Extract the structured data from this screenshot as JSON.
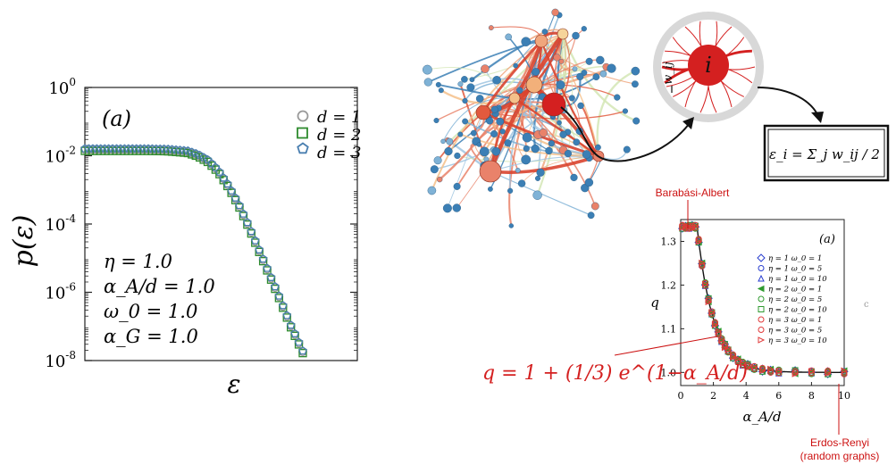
{
  "left_panel": {
    "panel_label": "(a)",
    "ylabel": "p(ε)",
    "xlabel": "ε",
    "yticks": [
      "10^0",
      "10^-2",
      "10^-4",
      "10^-6",
      "10^-8"
    ],
    "params": [
      "η = 1.0",
      "α_A/d = 1.0",
      "ω_0 = 1.0",
      "α_G = 1.0"
    ]
  },
  "strength_formula": "ε_i = Σ_j w_ij / 2",
  "node_label": "i",
  "edge_label": "w_ij",
  "right_panel": {
    "panel_label": "(a)",
    "ylabel": "q",
    "xlabel": "α_A/d",
    "ba_label": "Barabási-Albert",
    "er_label": "Erdos-Renyi",
    "er_sublabel": "(random graphs)",
    "formula": "q = 1 + (1/3) e^(1−α_A/d)",
    "stray_char": "c"
  },
  "chart_data": [
    {
      "type": "scatter",
      "panel": "left",
      "title": "",
      "xlabel": "ε",
      "ylabel": "p(ε)",
      "yscale": "log",
      "ylim": [
        1e-08,
        1
      ],
      "x_ticks_shown": false,
      "legend_position": "top-right",
      "series": [
        {
          "name": "d = 1",
          "marker": "circle",
          "color": "#999999"
        },
        {
          "name": "d = 2",
          "marker": "square",
          "color": "#2e8b2e"
        },
        {
          "name": "d = 3",
          "marker": "pentagon",
          "color": "#4a7fb0"
        }
      ],
      "curve": {
        "plateau_value": 0.015,
        "points_log10": [
          [
            0.0,
            -1.82
          ],
          [
            0.1,
            -1.82
          ],
          [
            0.2,
            -1.82
          ],
          [
            0.3,
            -1.82
          ],
          [
            0.4,
            -1.83
          ],
          [
            0.5,
            -1.88
          ],
          [
            0.55,
            -1.98
          ],
          [
            0.6,
            -2.15
          ],
          [
            0.65,
            -2.45
          ],
          [
            0.7,
            -2.9
          ],
          [
            0.75,
            -3.45
          ],
          [
            0.8,
            -4.1
          ],
          [
            0.85,
            -4.8
          ],
          [
            0.9,
            -5.5
          ],
          [
            0.95,
            -6.2
          ],
          [
            1.0,
            -6.95
          ],
          [
            1.05,
            -7.6
          ],
          [
            1.08,
            -8.0
          ]
        ]
      }
    },
    {
      "type": "scatter",
      "panel": "right",
      "title": "",
      "xlabel": "α_A/d",
      "ylabel": "q",
      "xlim": [
        0,
        10
      ],
      "ylim": [
        0.97,
        1.35
      ],
      "xticks": [
        0,
        2,
        4,
        6,
        8,
        10
      ],
      "yticks": [
        1.0,
        1.1,
        1.2,
        1.3
      ],
      "legend_position": "right",
      "series": [
        {
          "name": "η = 1  ω_0 = 1",
          "color": "#2a3fcf",
          "marker": "diamond"
        },
        {
          "name": "η = 1  ω_0 = 5",
          "color": "#2a3fcf",
          "marker": "circle"
        },
        {
          "name": "η = 1  ω_0 = 10",
          "color": "#2a3fcf",
          "marker": "triangle-up"
        },
        {
          "name": "η = 2  ω_0 = 1",
          "color": "#2f9a2f",
          "marker": "triangle-left"
        },
        {
          "name": "η = 2  ω_0 = 5",
          "color": "#2f9a2f",
          "marker": "circle"
        },
        {
          "name": "η = 2  ω_0 = 10",
          "color": "#2f9a2f",
          "marker": "square"
        },
        {
          "name": "η = 3  ω_0 = 1",
          "color": "#e03a3a",
          "marker": "circle"
        },
        {
          "name": "η = 3  ω_0 = 5",
          "color": "#e03a3a",
          "marker": "circle"
        },
        {
          "name": "η = 3  ω_0 = 10",
          "color": "#e03a3a",
          "marker": "triangle-right"
        }
      ],
      "theory_curve": "q = 1 + (1/3) e^(1−α_A/d) for α_A/d ≥ 1, q = 4/3 for α_A/d < 1",
      "sample_x": [
        0.1,
        0.3,
        0.5,
        0.7,
        0.9,
        1.1,
        1.3,
        1.5,
        1.7,
        1.9,
        2.1,
        2.3,
        2.5,
        2.7,
        2.9,
        3.2,
        3.5,
        3.8,
        4.1,
        4.5,
        5,
        5.5,
        6,
        7,
        8,
        9,
        10
      ]
    }
  ],
  "colors": {
    "accent_red": "#d42020",
    "annotation_red": "#cc1111",
    "node_blue": "#3b7fb5",
    "node_salmon": "#e9826a",
    "node_peach": "#f4c08a"
  }
}
